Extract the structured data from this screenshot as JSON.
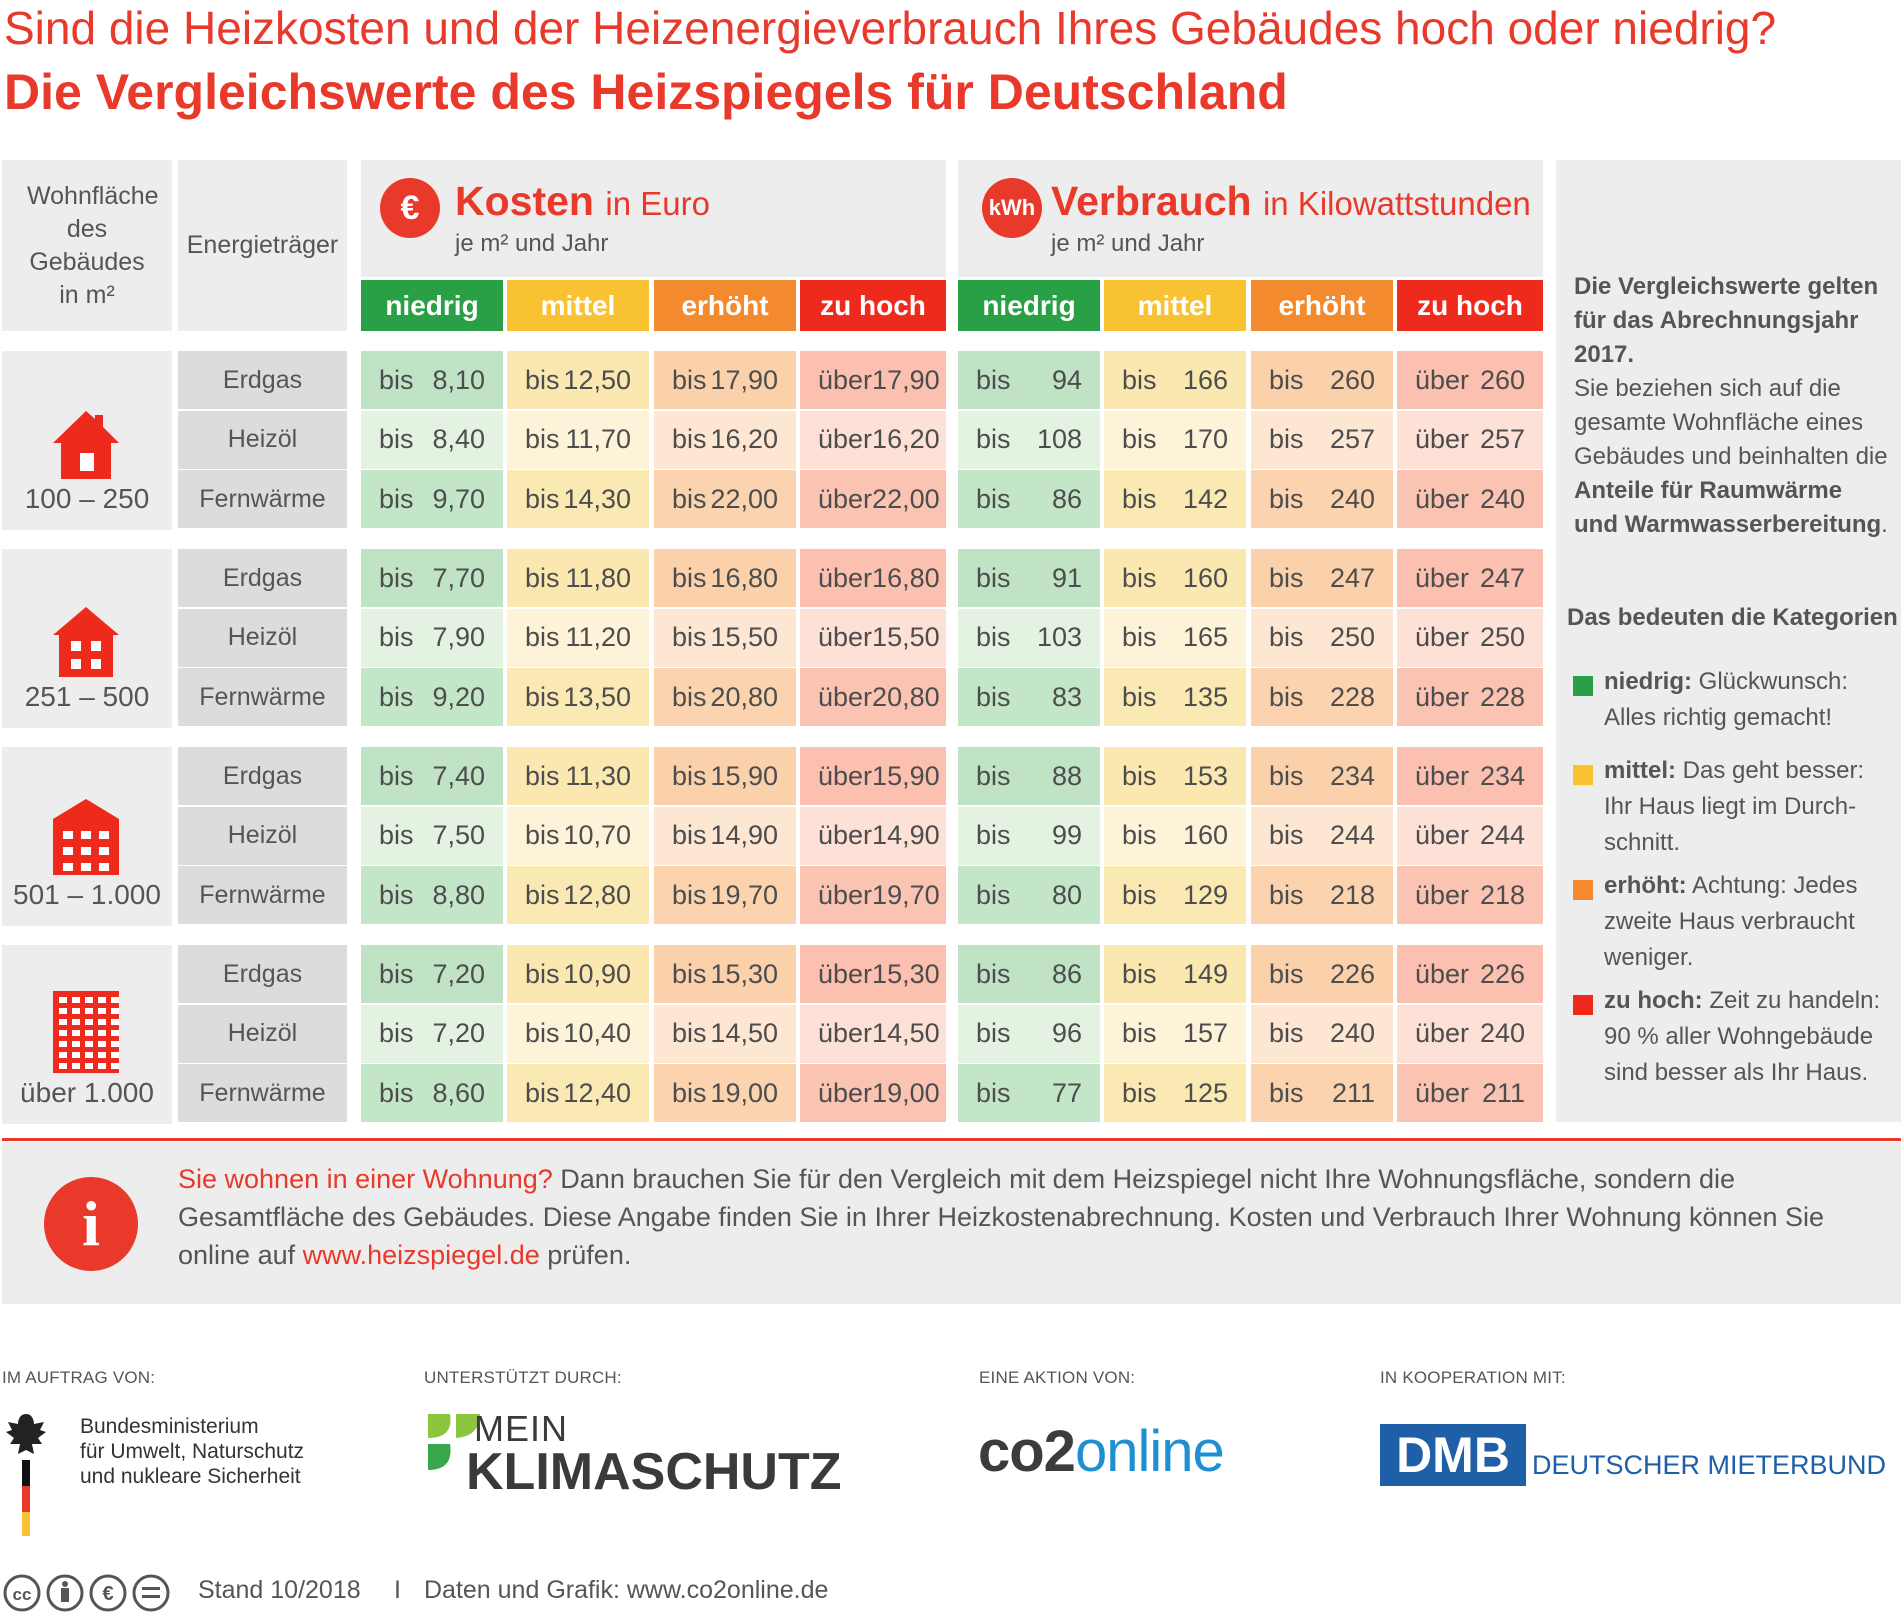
{
  "headline": "Sind die Heizkosten und der Heizenergieverbrauch Ihres Gebäudes hoch oder niedrig?",
  "subheadline": "Die Vergleichswerte des Heizspiegels für Deutschland",
  "table_header": {
    "area_label": "Wohnfläche des Gebäudes in m²",
    "energy_label": "Energieträger",
    "costs": {
      "icon": "€",
      "title": "Kosten",
      "unit": "in Euro",
      "per": "je m² und Jahr"
    },
    "consumption": {
      "icon": "kWh",
      "title": "Verbrauch",
      "unit": "in Kilowattstunden",
      "per": "je m² und Jahr"
    },
    "categories": [
      "niedrig",
      "mittel",
      "erhöht",
      "zu hoch"
    ]
  },
  "colors": {
    "niedrig": "#2aa046",
    "mittel": "#f9c232",
    "erhoeht": "#f38a2e",
    "zu_hoch": "#ee2a1c",
    "niedrig_light": "#bfe3c4",
    "mittel_light": "#fbe8b1",
    "erhoeht_light": "#fbd1ab",
    "zu_hoch_light": "#fbc0af",
    "accent": "#e8392b"
  },
  "groups": [
    {
      "size": "100 – 250",
      "icon": "house-icon",
      "rows": [
        {
          "energy": "Erdgas",
          "costs": [
            [
              "bis",
              "8,10"
            ],
            [
              "bis",
              "12,50"
            ],
            [
              "bis",
              "17,90"
            ],
            [
              "über",
              "17,90"
            ]
          ],
          "consumption": [
            [
              "bis",
              "94"
            ],
            [
              "bis",
              "166"
            ],
            [
              "bis",
              "260"
            ],
            [
              "über",
              "260"
            ]
          ]
        },
        {
          "energy": "Heizöl",
          "costs": [
            [
              "bis",
              "8,40"
            ],
            [
              "bis",
              "11,70"
            ],
            [
              "bis",
              "16,20"
            ],
            [
              "über",
              "16,20"
            ]
          ],
          "consumption": [
            [
              "bis",
              "108"
            ],
            [
              "bis",
              "170"
            ],
            [
              "bis",
              "257"
            ],
            [
              "über",
              "257"
            ]
          ]
        },
        {
          "energy": "Fernwärme",
          "costs": [
            [
              "bis",
              "9,70"
            ],
            [
              "bis",
              "14,30"
            ],
            [
              "bis",
              "22,00"
            ],
            [
              "über",
              "22,00"
            ]
          ],
          "consumption": [
            [
              "bis",
              "86"
            ],
            [
              "bis",
              "142"
            ],
            [
              "bis",
              "240"
            ],
            [
              "über",
              "240"
            ]
          ]
        }
      ]
    },
    {
      "size": "251 – 500",
      "icon": "small-building-icon",
      "rows": [
        {
          "energy": "Erdgas",
          "costs": [
            [
              "bis",
              "7,70"
            ],
            [
              "bis",
              "11,80"
            ],
            [
              "bis",
              "16,80"
            ],
            [
              "über",
              "16,80"
            ]
          ],
          "consumption": [
            [
              "bis",
              "91"
            ],
            [
              "bis",
              "160"
            ],
            [
              "bis",
              "247"
            ],
            [
              "über",
              "247"
            ]
          ]
        },
        {
          "energy": "Heizöl",
          "costs": [
            [
              "bis",
              "7,90"
            ],
            [
              "bis",
              "11,20"
            ],
            [
              "bis",
              "15,50"
            ],
            [
              "über",
              "15,50"
            ]
          ],
          "consumption": [
            [
              "bis",
              "103"
            ],
            [
              "bis",
              "165"
            ],
            [
              "bis",
              "250"
            ],
            [
              "über",
              "250"
            ]
          ]
        },
        {
          "energy": "Fernwärme",
          "costs": [
            [
              "bis",
              "9,20"
            ],
            [
              "bis",
              "13,50"
            ],
            [
              "bis",
              "20,80"
            ],
            [
              "über",
              "20,80"
            ]
          ],
          "consumption": [
            [
              "bis",
              "83"
            ],
            [
              "bis",
              "135"
            ],
            [
              "bis",
              "228"
            ],
            [
              "über",
              "228"
            ]
          ]
        }
      ]
    },
    {
      "size": "501 – 1.000",
      "icon": "medium-building-icon",
      "rows": [
        {
          "energy": "Erdgas",
          "costs": [
            [
              "bis",
              "7,40"
            ],
            [
              "bis",
              "11,30"
            ],
            [
              "bis",
              "15,90"
            ],
            [
              "über",
              "15,90"
            ]
          ],
          "consumption": [
            [
              "bis",
              "88"
            ],
            [
              "bis",
              "153"
            ],
            [
              "bis",
              "234"
            ],
            [
              "über",
              "234"
            ]
          ]
        },
        {
          "energy": "Heizöl",
          "costs": [
            [
              "bis",
              "7,50"
            ],
            [
              "bis",
              "10,70"
            ],
            [
              "bis",
              "14,90"
            ],
            [
              "über",
              "14,90"
            ]
          ],
          "consumption": [
            [
              "bis",
              "99"
            ],
            [
              "bis",
              "160"
            ],
            [
              "bis",
              "244"
            ],
            [
              "über",
              "244"
            ]
          ]
        },
        {
          "energy": "Fernwärme",
          "costs": [
            [
              "bis",
              "8,80"
            ],
            [
              "bis",
              "12,80"
            ],
            [
              "bis",
              "19,70"
            ],
            [
              "über",
              "19,70"
            ]
          ],
          "consumption": [
            [
              "bis",
              "80"
            ],
            [
              "bis",
              "129"
            ],
            [
              "bis",
              "218"
            ],
            [
              "über",
              "218"
            ]
          ]
        }
      ]
    },
    {
      "size": "über 1.000",
      "icon": "large-building-icon",
      "rows": [
        {
          "energy": "Erdgas",
          "costs": [
            [
              "bis",
              "7,20"
            ],
            [
              "bis",
              "10,90"
            ],
            [
              "bis",
              "15,30"
            ],
            [
              "über",
              "15,30"
            ]
          ],
          "consumption": [
            [
              "bis",
              "86"
            ],
            [
              "bis",
              "149"
            ],
            [
              "bis",
              "226"
            ],
            [
              "über",
              "226"
            ]
          ]
        },
        {
          "energy": "Heizöl",
          "costs": [
            [
              "bis",
              "7,20"
            ],
            [
              "bis",
              "10,40"
            ],
            [
              "bis",
              "14,50"
            ],
            [
              "über",
              "14,50"
            ]
          ],
          "consumption": [
            [
              "bis",
              "96"
            ],
            [
              "bis",
              "157"
            ],
            [
              "bis",
              "240"
            ],
            [
              "über",
              "240"
            ]
          ]
        },
        {
          "energy": "Fernwärme",
          "costs": [
            [
              "bis",
              "8,60"
            ],
            [
              "bis",
              "12,40"
            ],
            [
              "bis",
              "19,00"
            ],
            [
              "über",
              "19,00"
            ]
          ],
          "consumption": [
            [
              "bis",
              "77"
            ],
            [
              "bis",
              "125"
            ],
            [
              "bis",
              "211"
            ],
            [
              "über",
              "211"
            ]
          ]
        }
      ]
    }
  ],
  "sidebar": {
    "intro_bold": "Die Vergleichswerte gelten für das Abrechnungsjahr 2017.",
    "intro_text": "Sie beziehen sich auf die gesamte Wohnfläche eines Gebäudes und beinhalten die",
    "intro_bold2": "Anteile für Raumwärme und Warmwasserbereitung",
    "intro_end": ".",
    "legend_title": "Das bedeuten die Kategorien",
    "legend": [
      {
        "label": "niedrig:",
        "text": "Glückwunsch: Alles richtig gemacht!"
      },
      {
        "label": "mittel:",
        "text": "Das geht besser: Ihr Haus liegt im Durch-schnitt."
      },
      {
        "label": "erhöht:",
        "text": "Achtung: Jedes zweite Haus verbraucht weniger."
      },
      {
        "label": "zu hoch:",
        "text": "Zeit zu handeln: 90 % aller Wohngebäude sind besser als Ihr Haus."
      }
    ]
  },
  "info": {
    "lead": "Sie wohnen in einer Wohnung?",
    "text": "Dann brauchen Sie für den Vergleich mit dem Heizspiegel nicht Ihre Wohnungsfläche, sondern die Gesamtfläche des Gebäudes. Diese Angabe finden Sie in Ihrer Heizkostenabrechnung. Kosten und Verbrauch Ihrer Wohnung können Sie online auf",
    "link": "www.heizspiegel.de",
    "end": "prüfen."
  },
  "partners": {
    "commissioned_label": "IM AUFTRAG VON:",
    "ministry_lines": [
      "Bundesministerium",
      "für Umwelt, Naturschutz",
      "und nukleare Sicherheit"
    ],
    "supported_label": "UNTERSTÜTZT DURCH:",
    "klimaschutz_top": "MEIN",
    "klimaschutz_bottom": "KLIMASCHUTZ",
    "action_label": "EINE AKTION VON:",
    "co2_dark": "co2",
    "co2_blue": "online",
    "coop_label": "IN KOOPERATION MIT:",
    "dmb_short": "DMB",
    "dmb_long": "DEUTSCHER MIETERBUND"
  },
  "footer": {
    "license": "cc by nc nd",
    "stand": "Stand 10/2018",
    "separator": "I",
    "credit": "Daten und Grafik: www.co2online.de"
  }
}
